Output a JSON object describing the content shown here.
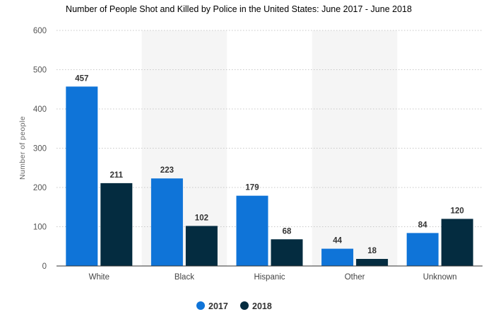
{
  "chart_data": {
    "type": "bar",
    "title": "Number of People Shot and Killed by Police in the United States: June 2017 - June 2018",
    "xlabel": "",
    "ylabel": "Number of people",
    "categories": [
      "White",
      "Black",
      "Hispanic",
      "Other",
      "Unknown"
    ],
    "series": [
      {
        "name": "2017",
        "values": [
          457,
          223,
          179,
          44,
          84
        ],
        "color": "#0f74d8"
      },
      {
        "name": "2018",
        "values": [
          211,
          102,
          68,
          18,
          120
        ],
        "color": "#042c40"
      }
    ],
    "ylim": [
      0,
      600
    ],
    "yticks": [
      0,
      100,
      200,
      300,
      400,
      500,
      600
    ],
    "grid": true,
    "grid_style": "dotted",
    "legend_position": "bottom-center",
    "band_color": "#f5f5f5",
    "data_labels": true
  }
}
